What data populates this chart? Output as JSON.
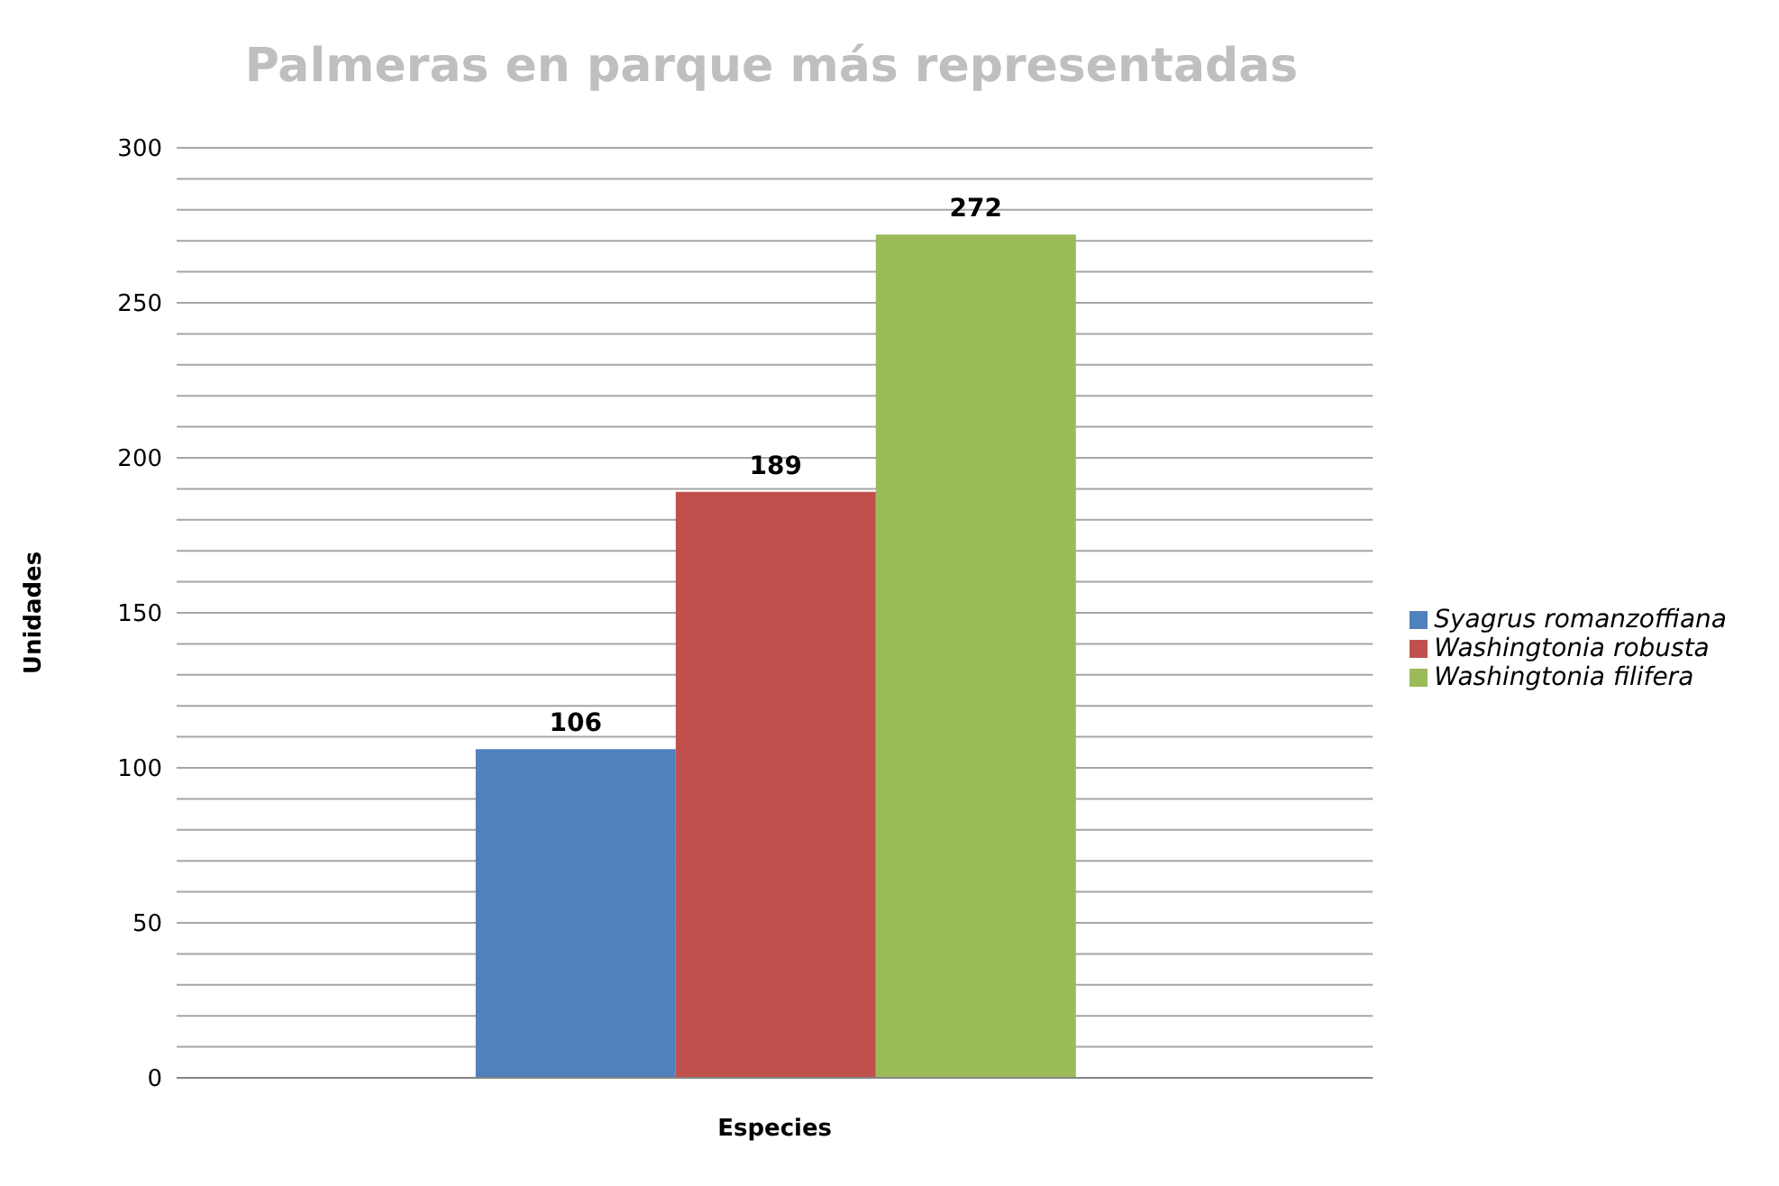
{
  "chart_data": {
    "type": "bar",
    "title": "Palmeras en parque más representadas",
    "xlabel": "Especies",
    "ylabel": "Unidades",
    "categories": [
      null
    ],
    "series": [
      {
        "name": "Syagrus romanzoffiana",
        "color": "#4f81bd",
        "values": [
          106
        ]
      },
      {
        "name": "Washingtonia robusta",
        "color": "#c0504d",
        "values": [
          189
        ]
      },
      {
        "name": "Washingtonia filifera",
        "color": "#9bbb59",
        "values": [
          272
        ]
      }
    ],
    "ylim": [
      0,
      300
    ],
    "yticks": [
      0,
      {
        "value": 10,
        "label": null
      },
      {
        "value": 20,
        "label": null
      },
      {
        "value": 30,
        "label": null
      },
      {
        "value": 40,
        "label": null
      },
      50,
      {
        "value": 60,
        "label": null
      },
      {
        "value": 70,
        "label": null
      },
      {
        "value": 80,
        "label": null
      },
      {
        "value": 90,
        "label": null
      },
      100,
      {
        "value": 110,
        "label": null
      },
      {
        "value": 120,
        "label": null
      },
      {
        "value": 130,
        "label": null
      },
      {
        "value": 140,
        "label": null
      },
      150,
      {
        "value": 160,
        "label": null
      },
      {
        "value": 170,
        "label": null
      },
      {
        "value": 180,
        "label": null
      },
      {
        "value": 190,
        "label": null
      },
      200,
      {
        "value": 210,
        "label": null
      },
      {
        "value": 220,
        "label": null
      },
      {
        "value": 230,
        "label": null
      },
      {
        "value": 240,
        "label": null
      },
      250,
      {
        "value": 260,
        "label": null
      },
      {
        "value": 270,
        "label": null
      },
      {
        "value": 280,
        "label": null
      },
      {
        "value": 290,
        "label": null
      },
      300
    ],
    "grid": "y",
    "legend": "right",
    "data_labels": true
  }
}
